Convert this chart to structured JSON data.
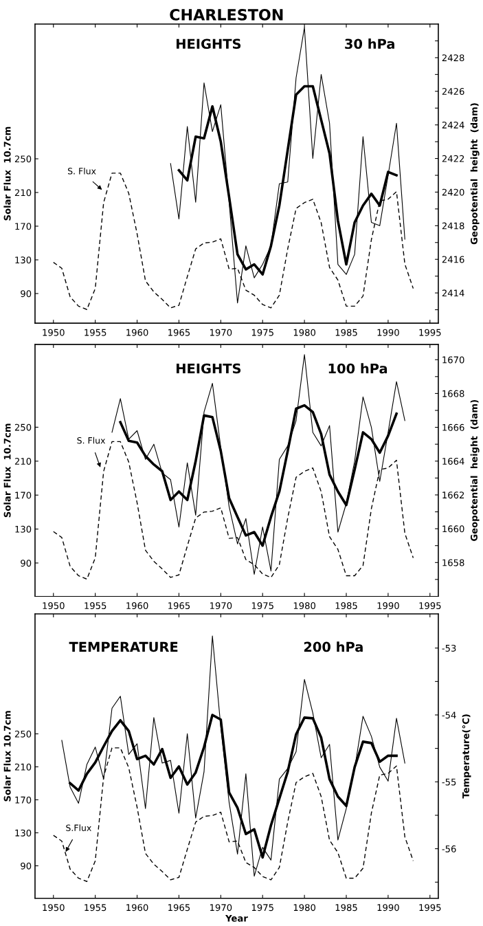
{
  "chart_data": [
    {
      "type": "line",
      "title": "CHARLESTON",
      "ylabel": "Solar Flux  10.7cm",
      "y2label": "Geopotential  height  (dam)",
      "annotations": [
        "HEIGHTS",
        "30 hPa",
        "S. Flux"
      ],
      "xlim": [
        1947.8,
        1996.0
      ],
      "xticks": [
        1950,
        1955,
        1960,
        1965,
        1970,
        1975,
        1980,
        1985,
        1990,
        1995
      ],
      "ylim": [
        54.8,
        410
      ],
      "yticks": [
        90,
        130,
        170,
        210,
        250
      ],
      "y2lim": [
        2412.2,
        2430
      ],
      "y2ticks": [
        {
          "value": 2413,
          "label": null
        },
        2414,
        {
          "value": 2415,
          "label": null
        },
        2416,
        {
          "value": 2417,
          "label": null
        },
        2418,
        {
          "value": 2419,
          "label": null
        },
        2420,
        {
          "value": 2421,
          "label": null
        },
        2422,
        {
          "value": 2423,
          "label": null
        },
        2424,
        {
          "value": 2425,
          "label": null
        },
        2426,
        {
          "value": 2427,
          "label": null
        },
        2428,
        {
          "value": 2429,
          "label": null
        }
      ],
      "grid": false,
      "marker": "none",
      "series": [
        {
          "color": "#000000",
          "line_style": "dashed",
          "x": [
            1950,
            1951,
            1952,
            1953,
            1954,
            1955,
            1956,
            1957,
            1958,
            1959,
            1960,
            1961,
            1962,
            1963,
            1964,
            1965,
            1966,
            1967,
            1968,
            1969,
            1970,
            1971,
            1972,
            1973,
            1974,
            1975,
            1976,
            1977,
            1978,
            1979,
            1980,
            1981,
            1982,
            1983,
            1984,
            1985,
            1986,
            1987,
            1988,
            1989,
            1990,
            1991,
            1992,
            1993
          ],
          "values": [
            127,
            120,
            86,
            75,
            71,
            96,
            198,
            233,
            233,
            209,
            161,
            105,
            92,
            83,
            73,
            76,
            110,
            143,
            150,
            151,
            155,
            119,
            120,
            94,
            88,
            77,
            73,
            88,
            143,
            191,
            198,
            202,
            174,
            121,
            106,
            75,
            75,
            87,
            154,
            200,
            202,
            211,
            125,
            96
          ]
        },
        {
          "color": "#000000",
          "line_style": "solid",
          "axis": "y2",
          "x": [
            1964,
            1965,
            1966,
            1967,
            1968,
            1969,
            1970,
            1971,
            1972,
            1973,
            1974,
            1975,
            1976,
            1977,
            1978,
            1979,
            1980,
            1981,
            1982,
            1983,
            1984,
            1985,
            1986,
            1987,
            1988,
            1989,
            1990,
            1991,
            1992
          ],
          "values": [
            2421.7,
            2418.4,
            2423.9,
            2419.4,
            2426.5,
            2423.6,
            2425.2,
            2419.4,
            2413.4,
            2416.8,
            2414.9,
            2415.7,
            2416.8,
            2420.5,
            2420.6,
            2426.8,
            2429.8,
            2422.0,
            2427.0,
            2424.1,
            2415.7,
            2415.1,
            2416.3,
            2423.3,
            2418.2,
            2418.0,
            2421.0,
            2424.1,
            2417.2
          ]
        },
        {
          "color": "#000000",
          "line_style": "solid",
          "axis": "y2",
          "x": [
            1965,
            1966,
            1967,
            1968,
            1969,
            1970,
            1971,
            1972,
            1973,
            1974,
            1975,
            1976,
            1977,
            1978,
            1979,
            1980,
            1981,
            1982,
            1983,
            1984,
            1985,
            1986,
            1987,
            1988,
            1989,
            1990,
            1991
          ],
          "values": [
            2421.3,
            2420.7,
            2423.3,
            2423.2,
            2425.1,
            2423.0,
            2419.7,
            2416.3,
            2415.4,
            2415.7,
            2415.1,
            2416.8,
            2419.2,
            2422.5,
            2425.8,
            2426.3,
            2426.3,
            2424.3,
            2422.3,
            2418.3,
            2415.7,
            2418.2,
            2419.2,
            2419.9,
            2419.2,
            2421.2,
            2421.0
          ]
        }
      ]
    },
    {
      "type": "line",
      "ylabel": "Solar Flux  10.7cm",
      "y2label": "Geopotential  height  (dam)",
      "annotations": [
        "HEIGHTS",
        "100 hPa",
        "S. Flux"
      ],
      "xlim": [
        1947.8,
        1996.0
      ],
      "xticks": [
        1950,
        1955,
        1960,
        1965,
        1970,
        1975,
        1980,
        1985,
        1990,
        1995
      ],
      "ylim": [
        50.7,
        347.5
      ],
      "yticks": [
        90,
        130,
        170,
        210,
        250
      ],
      "y2lim": [
        1656.0,
        1670.9
      ],
      "y2ticks": [
        {
          "value": 1657,
          "label": null
        },
        1658,
        {
          "value": 1659,
          "label": null
        },
        1660,
        {
          "value": 1661,
          "label": null
        },
        1662,
        {
          "value": 1663,
          "label": null
        },
        1664,
        {
          "value": 1665,
          "label": null
        },
        1666,
        {
          "value": 1667,
          "label": null
        },
        1668,
        {
          "value": 1669,
          "label": null
        },
        1670
      ],
      "grid": false,
      "marker": "none",
      "series": [
        {
          "color": "#000000",
          "line_style": "dashed",
          "x": [
            1950,
            1951,
            1952,
            1953,
            1954,
            1955,
            1956,
            1957,
            1958,
            1959,
            1960,
            1961,
            1962,
            1963,
            1964,
            1965,
            1966,
            1967,
            1968,
            1969,
            1970,
            1971,
            1972,
            1973,
            1974,
            1975,
            1976,
            1977,
            1978,
            1979,
            1980,
            1981,
            1982,
            1983,
            1984,
            1985,
            1986,
            1987,
            1988,
            1989,
            1990,
            1991,
            1992,
            1993
          ],
          "values": [
            127,
            120,
            86,
            75,
            71,
            96,
            198,
            233,
            233,
            209,
            161,
            105,
            92,
            83,
            73,
            76,
            110,
            143,
            150,
            151,
            155,
            119,
            120,
            94,
            88,
            77,
            73,
            88,
            143,
            191,
            198,
            202,
            174,
            121,
            106,
            75,
            75,
            87,
            154,
            200,
            202,
            211,
            125,
            96
          ]
        },
        {
          "color": "#000000",
          "line_style": "solid",
          "axis": "y2",
          "x": [
            1957,
            1958,
            1959,
            1960,
            1961,
            1962,
            1963,
            1964,
            1965,
            1966,
            1967,
            1968,
            1969,
            1970,
            1971,
            1972,
            1973,
            1974,
            1975,
            1976,
            1977,
            1978,
            1979,
            1980,
            1981,
            1982,
            1983,
            1984,
            1985,
            1986,
            1987,
            1988,
            1989,
            1990,
            1991,
            1992
          ],
          "values": [
            1665.7,
            1667.7,
            1665.3,
            1665.8,
            1664.1,
            1665.0,
            1663.3,
            1662.9,
            1660.1,
            1663.9,
            1660.8,
            1666.9,
            1668.6,
            1664.8,
            1661.3,
            1659.1,
            1660.6,
            1657.3,
            1660.1,
            1657.5,
            1664.1,
            1664.9,
            1666.4,
            1670.3,
            1665.7,
            1664.9,
            1666.1,
            1659.8,
            1661.5,
            1664.0,
            1667.8,
            1666.0,
            1662.8,
            1665.7,
            1668.7,
            1666.4
          ]
        },
        {
          "color": "#000000",
          "line_style": "solid",
          "axis": "y2",
          "x": [
            1958,
            1959,
            1960,
            1961,
            1962,
            1963,
            1964,
            1965,
            1966,
            1967,
            1968,
            1969,
            1970,
            1971,
            1972,
            1973,
            1974,
            1975,
            1976,
            1977,
            1978,
            1979,
            1980,
            1981,
            1982,
            1983,
            1984,
            1985,
            1986,
            1987,
            1988,
            1989,
            1990,
            1991
          ],
          "values": [
            1666.3,
            1665.2,
            1665.1,
            1664.3,
            1663.8,
            1663.4,
            1661.7,
            1662.2,
            1661.7,
            1664.0,
            1666.7,
            1666.6,
            1664.6,
            1661.8,
            1660.7,
            1659.6,
            1659.8,
            1659.0,
            1660.7,
            1662.2,
            1664.6,
            1667.1,
            1667.3,
            1666.9,
            1665.6,
            1663.2,
            1662.2,
            1661.4,
            1663.5,
            1665.7,
            1665.3,
            1664.5,
            1665.5,
            1666.8
          ]
        }
      ]
    },
    {
      "type": "line",
      "xlabel": "Year",
      "ylabel": "Solar Flux 10.7cm",
      "y2label": "Temperature(°C)",
      "annotations": [
        "TEMPERATURE",
        "200 hPa",
        "S.Flux"
      ],
      "xlim": [
        1947.8,
        1996.0
      ],
      "xticks": [
        1950,
        1955,
        1960,
        1965,
        1970,
        1975,
        1980,
        1985,
        1990,
        1995
      ],
      "ylim": [
        50.7,
        395.4
      ],
      "yticks": [
        90,
        130,
        170,
        210,
        250
      ],
      "y2lim": [
        -56.74,
        -52.49
      ],
      "y2ticks": [
        {
          "value": -56.5,
          "label": null
        },
        -56,
        {
          "value": -55.5,
          "label": null
        },
        -55,
        {
          "value": -54.5,
          "label": null
        },
        -54,
        {
          "value": -53.5,
          "label": null
        },
        -53
      ],
      "grid": false,
      "marker": "none",
      "series": [
        {
          "color": "#000000",
          "line_style": "dashed",
          "x": [
            1950,
            1951,
            1952,
            1953,
            1954,
            1955,
            1956,
            1957,
            1958,
            1959,
            1960,
            1961,
            1962,
            1963,
            1964,
            1965,
            1966,
            1967,
            1968,
            1969,
            1970,
            1971,
            1972,
            1973,
            1974,
            1975,
            1976,
            1977,
            1978,
            1979,
            1980,
            1981,
            1982,
            1983,
            1984,
            1985,
            1986,
            1987,
            1988,
            1989,
            1990,
            1991,
            1992,
            1993
          ],
          "values": [
            127,
            120,
            86,
            75,
            71,
            96,
            198,
            233,
            233,
            209,
            161,
            105,
            92,
            83,
            73,
            76,
            110,
            143,
            150,
            151,
            155,
            119,
            120,
            94,
            88,
            77,
            73,
            88,
            143,
            191,
            198,
            202,
            174,
            121,
            106,
            75,
            75,
            87,
            154,
            200,
            202,
            211,
            125,
            96
          ]
        },
        {
          "color": "#000000",
          "line_style": "solid",
          "axis": "y2",
          "x": [
            1951,
            1952,
            1953,
            1954,
            1955,
            1956,
            1957,
            1958,
            1959,
            1960,
            1961,
            1962,
            1963,
            1964,
            1965,
            1966,
            1967,
            1968,
            1969,
            1970,
            1971,
            1972,
            1973,
            1974,
            1975,
            1976,
            1977,
            1978,
            1979,
            1980,
            1981,
            1982,
            1983,
            1984,
            1985,
            1986,
            1987,
            1988,
            1989,
            1990,
            1991,
            1992
          ],
          "values": [
            -54.38,
            -55.08,
            -55.32,
            -54.74,
            -54.48,
            -54.96,
            -53.9,
            -53.72,
            -54.59,
            -54.43,
            -55.4,
            -54.04,
            -54.72,
            -54.68,
            -55.47,
            -54.28,
            -55.54,
            -54.85,
            -52.82,
            -54.18,
            -55.31,
            -56.08,
            -54.88,
            -56.41,
            -55.98,
            -56.17,
            -54.96,
            -54.8,
            -54.55,
            -53.47,
            -53.97,
            -54.64,
            -54.44,
            -55.87,
            -55.4,
            -54.8,
            -54.02,
            -54.32,
            -54.78,
            -54.99,
            -54.05,
            -54.72
          ]
        },
        {
          "color": "#000000",
          "line_style": "solid",
          "axis": "y2",
          "x": [
            1952,
            1953,
            1954,
            1955,
            1956,
            1957,
            1958,
            1959,
            1960,
            1961,
            1962,
            1963,
            1964,
            1965,
            1966,
            1967,
            1968,
            1969,
            1970,
            1971,
            1972,
            1973,
            1974,
            1975,
            1976,
            1977,
            1978,
            1979,
            1980,
            1981,
            1982,
            1983,
            1984,
            1985,
            1986,
            1987,
            1988,
            1989,
            1990,
            1991
          ],
          "values": [
            -55.02,
            -55.13,
            -54.88,
            -54.71,
            -54.47,
            -54.24,
            -54.08,
            -54.24,
            -54.66,
            -54.61,
            -54.74,
            -54.51,
            -54.94,
            -54.77,
            -55.04,
            -54.86,
            -54.48,
            -54.0,
            -54.07,
            -55.16,
            -55.39,
            -55.78,
            -55.71,
            -56.13,
            -55.65,
            -55.25,
            -54.85,
            -54.29,
            -54.04,
            -54.05,
            -54.34,
            -54.96,
            -55.22,
            -55.36,
            -54.78,
            -54.4,
            -54.42,
            -54.7,
            -54.61,
            -54.61
          ]
        }
      ]
    }
  ]
}
